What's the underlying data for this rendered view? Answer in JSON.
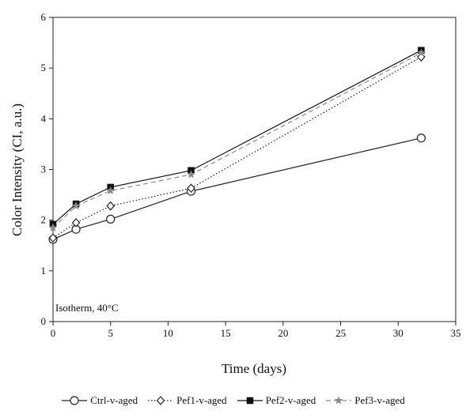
{
  "chart_data": {
    "type": "line",
    "title": "",
    "xlabel": "Time (days)",
    "ylabel": "Color Intensity (CI, a.u.)",
    "xlim": [
      0,
      35
    ],
    "ylim": [
      0,
      6
    ],
    "xticks": [
      "0",
      "5",
      "10",
      "15",
      "20",
      "25",
      "30",
      "35"
    ],
    "yticks": [
      "0",
      "1",
      "2",
      "3",
      "4",
      "5",
      "6"
    ],
    "grid": false,
    "legend_position": "bottom",
    "annotation": "Isotherm, 40°C",
    "series": [
      {
        "name": "Ctrl-v-aged",
        "marker": "open-circle",
        "line_style": "solid",
        "color": "#222222",
        "x": [
          0,
          2,
          5,
          12,
          32
        ],
        "y": [
          1.62,
          1.82,
          2.02,
          2.57,
          3.62
        ]
      },
      {
        "name": "Pef1-v-aged",
        "marker": "open-diamond",
        "line_style": "dotted",
        "color": "#222222",
        "x": [
          0,
          2,
          5,
          12,
          32
        ],
        "y": [
          1.65,
          1.95,
          2.28,
          2.63,
          5.22
        ]
      },
      {
        "name": "Pef2-v-aged",
        "marker": "filled-square",
        "line_style": "solid",
        "color": "#111111",
        "x": [
          0,
          2,
          5,
          12,
          32
        ],
        "y": [
          1.92,
          2.32,
          2.65,
          2.98,
          5.35
        ]
      },
      {
        "name": "Pef3-v-aged",
        "marker": "star",
        "line_style": "dashed",
        "color": "#8a8a8a",
        "x": [
          0,
          2,
          5,
          12,
          32
        ],
        "y": [
          1.85,
          2.28,
          2.58,
          2.9,
          5.3
        ]
      }
    ]
  }
}
